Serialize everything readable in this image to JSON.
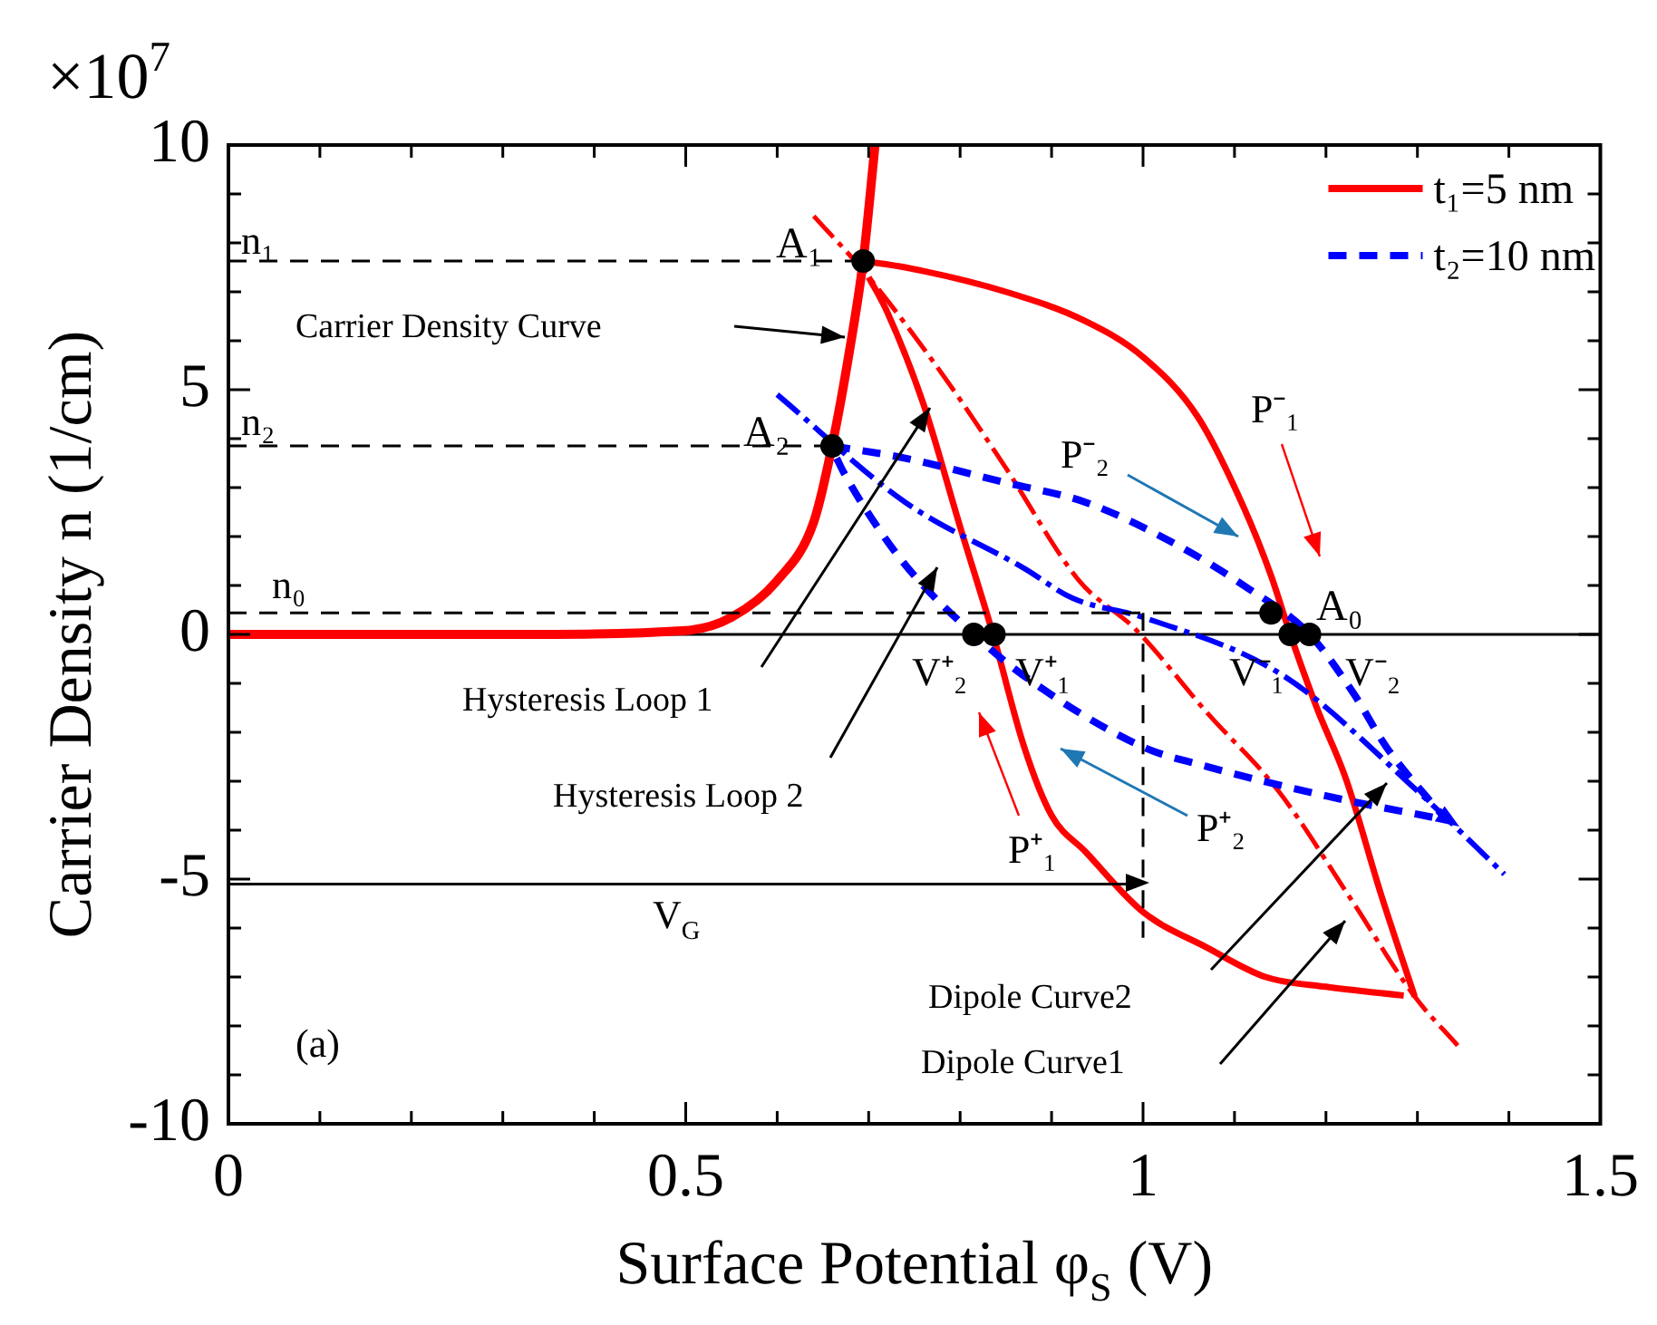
{
  "chart_data": {
    "type": "line",
    "xlabel": "Surface Potential φ$_{S}$ (V)",
    "ylabel": "Carrier Density n (1/cm)",
    "xlim": [
      0,
      1.5
    ],
    "xticks": [
      0,
      {
        "value": 0.1,
        "label": null
      },
      {
        "value": 0.2,
        "label": null
      },
      {
        "value": 0.3,
        "label": null
      },
      {
        "value": 0.4,
        "label": null
      },
      0.5,
      {
        "value": 0.6,
        "label": null
      },
      {
        "value": 0.7,
        "label": null
      },
      {
        "value": 0.8,
        "label": null
      },
      {
        "value": 0.9,
        "label": null
      },
      1,
      {
        "value": 1.1,
        "label": null
      },
      {
        "value": 1.2,
        "label": null
      },
      {
        "value": 1.3,
        "label": null
      },
      {
        "value": 1.4,
        "label": null
      },
      1.5
    ],
    "ylim": [
      -10,
      10
    ],
    "yticks": [
      -10,
      {
        "value": -9,
        "label": null
      },
      {
        "value": -8,
        "label": null
      },
      {
        "value": -7,
        "label": null
      },
      {
        "value": -6,
        "label": null
      },
      -5,
      {
        "value": -4,
        "label": null
      },
      {
        "value": -3,
        "label": null
      },
      {
        "value": -2,
        "label": null
      },
      {
        "value": -1,
        "label": null
      },
      0,
      {
        "value": 1,
        "label": null
      },
      {
        "value": 2,
        "label": null
      },
      {
        "value": 3,
        "label": null
      },
      {
        "value": 4,
        "label": null
      },
      5,
      {
        "value": 6,
        "label": null
      },
      {
        "value": 7,
        "label": null
      },
      {
        "value": 8,
        "label": null
      },
      {
        "value": 9,
        "label": null
      },
      10
    ],
    "grid": false,
    "legend": "top right",
    "series": [
      {
        "type": "line",
        "color": "#ff0000",
        "line_style": "solid",
        "x": [
          0,
          0.3,
          0.5,
          0.55,
          0.6,
          0.64,
          0.66,
          0.68,
          0.694,
          0.707
        ],
        "values": [
          0,
          0,
          0.08,
          0.35,
          1.1,
          2.3,
          3.85,
          5.9,
          7.63,
          10
        ]
      },
      {
        "type": "line",
        "name": "t₁=5 nm",
        "color": "#ff0000",
        "line_style": "solid",
        "x": [
          0.694,
          0.74,
          0.85,
          0.937,
          1.0,
          1.06,
          1.11,
          1.14,
          1.161,
          1.19,
          1.222,
          1.26,
          1.297
        ],
        "values": [
          7.63,
          7.5,
          7.0,
          6.4,
          5.67,
          4.44,
          2.6,
          1.2,
          0,
          -1.5,
          -2.96,
          -5.3,
          -7.4
        ]
      },
      {
        "type": "line",
        "color": "#ff0000",
        "line_style": "solid",
        "x": [
          0.7,
          0.72,
          0.76,
          0.8,
          0.836,
          0.87,
          0.9,
          0.937,
          1.0,
          1.07,
          1.134,
          1.2,
          1.285
        ],
        "values": [
          7.3,
          6.6,
          4.7,
          2.2,
          0,
          -2.3,
          -3.7,
          -4.44,
          -5.67,
          -6.4,
          -7.0,
          -7.2,
          -7.38
        ]
      },
      {
        "type": "line",
        "color": "#ff0000",
        "line_style": "dashed",
        "x": [
          0.64,
          0.7,
          0.785,
          0.85,
          0.93,
          0.992,
          1.07,
          1.148,
          1.227,
          1.297,
          1.344
        ],
        "values": [
          8.55,
          7.3,
          5.2,
          3.4,
          1.1,
          0.1,
          -1.6,
          -3.2,
          -5.4,
          -7.4,
          -8.4
        ]
      },
      {
        "type": "line",
        "name": "t₂=10 nm",
        "color": "#0000ff",
        "line_style": "dashed",
        "x": [
          0.66,
          0.74,
          0.85,
          0.937,
          1.035,
          1.11,
          1.182,
          1.23,
          1.266,
          1.332
        ],
        "values": [
          3.85,
          3.6,
          3.1,
          2.7,
          1.85,
          1.0,
          0,
          -1.2,
          -2.3,
          -3.8
        ]
      },
      {
        "type": "line",
        "color": "#0000ff",
        "line_style": "dashed",
        "x": [
          0.665,
          0.673,
          0.713,
          0.75,
          0.815,
          0.87,
          1.0,
          1.07,
          1.2,
          1.32
        ],
        "values": [
          3.6,
          3.3,
          2.1,
          1.2,
          0,
          -0.85,
          -2.3,
          -2.7,
          -3.3,
          -3.75
        ]
      },
      {
        "type": "line",
        "color": "#0000ff",
        "line_style": "dashed",
        "x": [
          0.6,
          0.74,
          0.87,
          0.923,
          1.0,
          1.154,
          1.3,
          1.395
        ],
        "values": [
          4.9,
          2.7,
          1.35,
          0.74,
          0.35,
          -0.85,
          -3.2,
          -4.9
        ]
      },
      {
        "type": "line",
        "color": "#000000",
        "line_style": "dashed",
        "x": [
          0,
          0.694
        ],
        "values": [
          7.63,
          7.63
        ]
      },
      {
        "type": "line",
        "color": "#000000",
        "line_style": "dashed",
        "x": [
          0,
          0.66
        ],
        "values": [
          3.85,
          3.85
        ]
      },
      {
        "type": "line",
        "color": "#000000",
        "line_style": "dashed",
        "x": [
          0,
          1.14
        ],
        "values": [
          0.44,
          0.44
        ]
      },
      {
        "type": "line",
        "color": "#000000",
        "line_style": "dashed",
        "x": [
          1,
          1
        ],
        "values": [
          0.44,
          -6.2
        ]
      },
      {
        "type": "line",
        "color": "#000000",
        "line_style": "solid",
        "x": [
          0,
          0.99
        ],
        "values": [
          -5.1,
          -5.1
        ]
      },
      {
        "type": "scatter",
        "color": "#000000",
        "marker": "circle",
        "x": [
          0.694,
          0.66,
          1.14,
          0.815,
          0.837,
          1.161,
          1.182
        ],
        "values": [
          7.63,
          3.85,
          0.44,
          0,
          0,
          0,
          0
        ]
      }
    ],
    "ref_lines": [
      {
        "axis": "y",
        "value": 0,
        "color": "#000000",
        "line_style": "solid"
      }
    ],
    "annotations": [
      "×10$^{7}$",
      "n₁",
      "n₂",
      "n₀",
      "A₁",
      "A₂",
      "A₀",
      "Carrier Density Curve",
      "Hysteresis Loop 1",
      "Hysteresis Loop 2",
      "V⁺₂",
      "V⁺₁",
      "V⁻₁",
      "V⁻₂",
      "P⁻₁",
      "P⁻₂",
      "P⁺₁",
      "P⁺₂",
      "V$_{G}$",
      "(a)",
      "Dipole Curve2",
      "Dipole Curve1"
    ]
  }
}
